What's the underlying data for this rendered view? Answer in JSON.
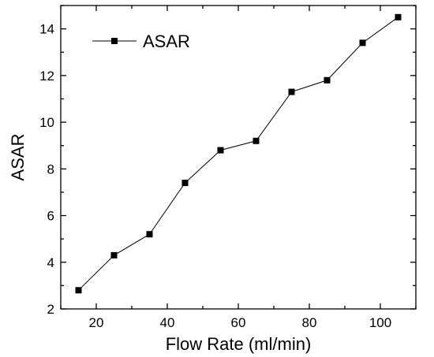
{
  "chart_data": {
    "type": "line",
    "xlabel": "Flow Rate (ml/min)",
    "ylabel": "ASAR",
    "xlim": [
      10,
      110
    ],
    "ylim": [
      2,
      15
    ],
    "xticks": [
      20,
      40,
      60,
      80,
      100
    ],
    "yticks": [
      2,
      4,
      6,
      8,
      10,
      12,
      14
    ],
    "legend_position": "top-left",
    "grid": false,
    "series": [
      {
        "name": "ASAR",
        "x": [
          15,
          25,
          35,
          45,
          55,
          65,
          75,
          85,
          95,
          105
        ],
        "values": [
          2.8,
          4.3,
          5.2,
          7.4,
          8.8,
          9.2,
          11.3,
          11.8,
          13.4,
          14.5
        ],
        "marker": "square",
        "color": "#000000"
      }
    ]
  }
}
